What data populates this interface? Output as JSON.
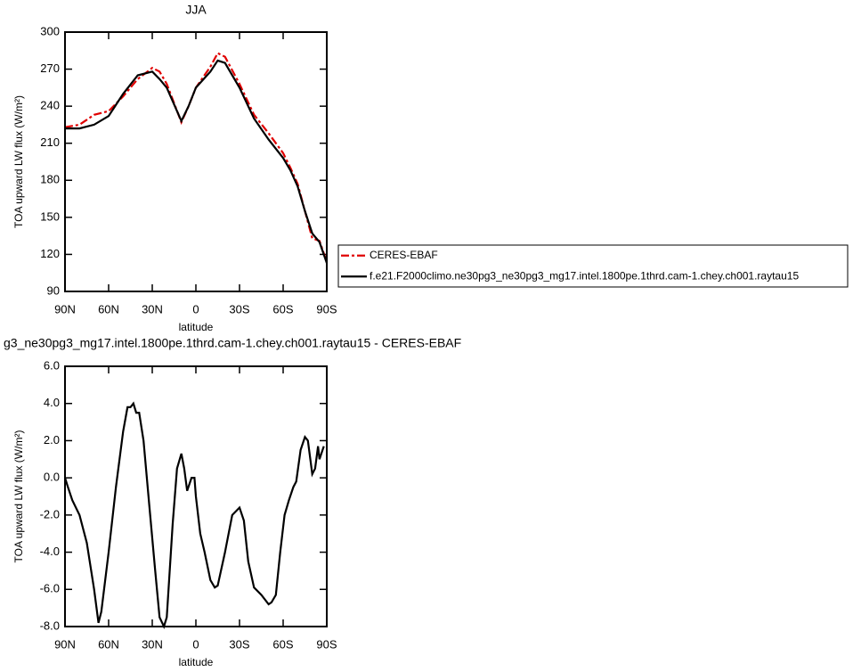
{
  "chart_data": [
    {
      "type": "line",
      "title": "JJA",
      "xlabel": "latitude",
      "ylabel": "TOA upward LW flux (W/m²)",
      "x": [
        90,
        80,
        70,
        60,
        50,
        40,
        30,
        25,
        20,
        10,
        5,
        0,
        -10,
        -15,
        -20,
        -30,
        -40,
        -50,
        -60,
        -65,
        -70,
        -75,
        -80,
        -85,
        -90
      ],
      "series": [
        {
          "name": "CERES-EBAF",
          "color": "#e00000",
          "dash": true,
          "values": [
            223,
            225,
            233,
            236,
            248,
            262,
            271,
            268,
            258,
            227,
            240,
            255,
            272,
            283,
            280,
            258,
            233,
            218,
            202,
            190,
            177,
            155,
            133,
            131,
            114
          ]
        },
        {
          "name": "f.e21.F2000climo.ne30pg3_ne30pg3_mg17.intel.1800pe.1thrd.cam-1.chey.ch001.raytau15",
          "color": "#000000",
          "dash": false,
          "values": [
            222,
            222,
            225,
            232,
            250,
            265,
            268,
            262,
            255,
            228,
            240,
            255,
            268,
            277,
            275,
            255,
            230,
            213,
            198,
            188,
            175,
            155,
            137,
            130,
            113
          ]
        }
      ],
      "xlim": [
        90,
        -90
      ],
      "xticks": [
        {
          "value": 90,
          "label": "90N"
        },
        {
          "value": 60,
          "label": "60N"
        },
        {
          "value": 30,
          "label": "30N"
        },
        0,
        {
          "value": -30,
          "label": "30S"
        },
        {
          "value": -60,
          "label": "60S"
        },
        {
          "value": -90,
          "label": "90S"
        }
      ],
      "ylim": [
        90,
        300
      ],
      "yticks": [
        90,
        120,
        150,
        180,
        210,
        240,
        270,
        300
      ],
      "legend": "right"
    },
    {
      "type": "line",
      "title": "g3_ne30pg3_mg17.intel.1800pe.1thrd.cam-1.chey.ch001.raytau15 - CERES-EBAF",
      "xlabel": "latitude",
      "ylabel": "TOA upward LW flux (W/m²)",
      "x": [
        90,
        88,
        85,
        80,
        75,
        70,
        67,
        65,
        60,
        55,
        50,
        47,
        45,
        43,
        41,
        39,
        36,
        32,
        28,
        25,
        22,
        20,
        16,
        13,
        10,
        8,
        6,
        3,
        1,
        0,
        -3,
        -6,
        -10,
        -13,
        -15,
        -20,
        -25,
        -30,
        -33,
        -36,
        -40,
        -45,
        -50,
        -52,
        -55,
        -58,
        -61,
        -64,
        -67,
        -69,
        -72,
        -75,
        -77,
        -80,
        -82,
        -84,
        -85,
        -88
      ],
      "values": [
        0,
        -0.5,
        -1.2,
        -2,
        -3.5,
        -6,
        -7.8,
        -7.2,
        -4,
        -0.5,
        2.5,
        3.8,
        3.8,
        4,
        3.5,
        3.5,
        2,
        -1.5,
        -5,
        -7.5,
        -8,
        -7.5,
        -2.5,
        0.5,
        1.3,
        0.5,
        -0.7,
        0,
        0,
        -1,
        -3,
        -4,
        -5.5,
        -5.9,
        -5.8,
        -4,
        -2,
        -1.6,
        -2.3,
        -4.5,
        -5.9,
        -6.3,
        -6.8,
        -6.7,
        -6.3,
        -4,
        -2,
        -1.2,
        -0.5,
        -0.2,
        1.5,
        2.2,
        2,
        0.2,
        0.5,
        1.7,
        1,
        1.7
      ],
      "color": "#000000",
      "xlim": [
        90,
        -90
      ],
      "xticks": [
        {
          "value": 90,
          "label": "90N"
        },
        {
          "value": 60,
          "label": "60N"
        },
        {
          "value": 30,
          "label": "30N"
        },
        0,
        {
          "value": -30,
          "label": "30S"
        },
        {
          "value": -60,
          "label": "60S"
        },
        {
          "value": -90,
          "label": "90S"
        }
      ],
      "ylim": [
        -8,
        6
      ],
      "yticks": [
        {
          "value": -8,
          "label": "-8.0"
        },
        {
          "value": -6,
          "label": "-6.0"
        },
        {
          "value": -4,
          "label": "-4.0"
        },
        {
          "value": -2,
          "label": "-2.0"
        },
        {
          "value": 0,
          "label": "0.0"
        },
        {
          "value": 2,
          "label": "2.0"
        },
        {
          "value": 4,
          "label": "4.0"
        },
        {
          "value": 6,
          "label": "6.0"
        }
      ]
    }
  ]
}
